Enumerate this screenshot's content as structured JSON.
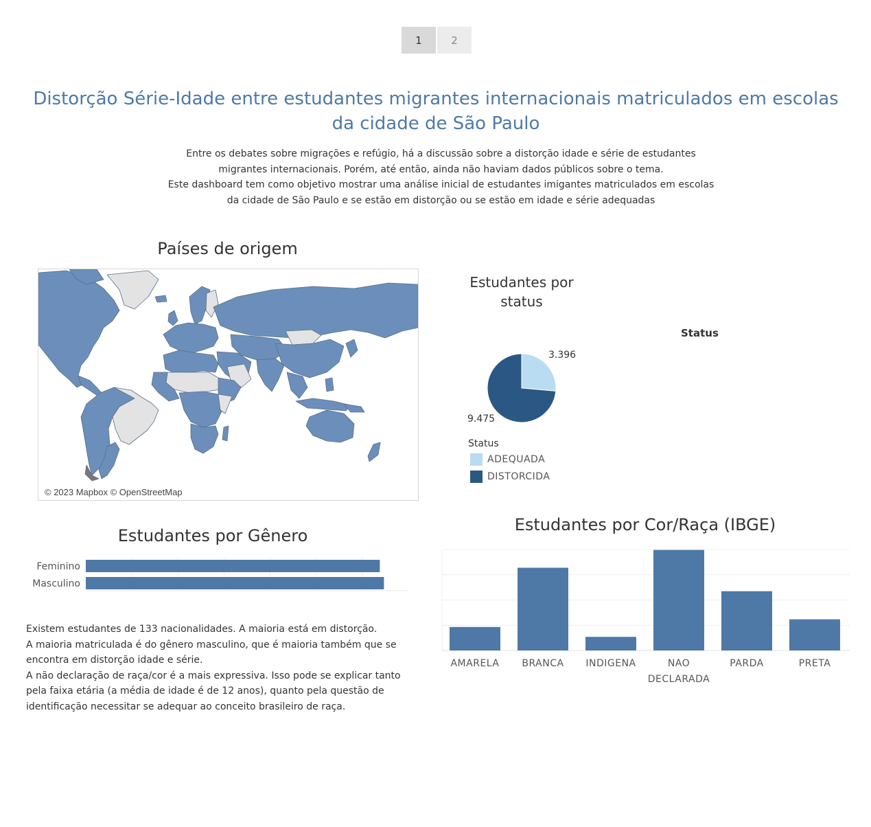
{
  "pager": {
    "pages": [
      "1",
      "2"
    ],
    "active": "1"
  },
  "title": "Distorção Série-Idade entre estudantes migrantes internacionais matriculados em escolas da cidade de São Paulo",
  "intro": [
    "Entre os debates sobre migrações e refúgio, há a discussão sobre a distorção idade e série de estudantes",
    "migrantes internacionais. Porém, até então, ainda não haviam dados públicos sobre o tema.",
    "Este dashboard tem como objetivo mostrar uma análise inicial de estudantes imigantes matriculados em escolas",
    "da cidade de São Paulo e se estão em distorção ou se estão em idade e série adequadas"
  ],
  "map": {
    "title": "Países de origem",
    "credit": "© 2023 Mapbox © OpenStreetMap",
    "fill_color": "#6b8fba",
    "empty_color": "#e3e3e3"
  },
  "status_header": "Status",
  "colors": {
    "adequada": "#b9dcf2",
    "distorcida": "#2b5784",
    "bar": "#4e79a7"
  },
  "chart_data": [
    {
      "type": "pie",
      "title": "Estudantes por status",
      "legend_title": "Status",
      "labels": [
        "ADEQUADA",
        "DISTORCIDA"
      ],
      "values": [
        3396,
        9475
      ],
      "value_labels": [
        "3.396",
        "9.475"
      ]
    },
    {
      "type": "bar",
      "orientation": "horizontal",
      "title": "Estudantes por Gênero",
      "categories": [
        "Feminino",
        "Masculino"
      ],
      "values": [
        6380,
        6470
      ],
      "xlim": [
        0,
        7000
      ]
    },
    {
      "type": "bar",
      "title": "Estudantes por Cor/Raça (IBGE)",
      "categories": [
        "AMARELA",
        "BRANCA",
        "INDIGENA",
        "NAO DECLARADA",
        "PARDA",
        "PRETA"
      ],
      "values": [
        1070,
        3770,
        620,
        4580,
        2700,
        1420
      ],
      "ylim": [
        0,
        4600
      ]
    }
  ],
  "notes": [
    "Existem estudantes de 133 nacionalidades. A maioria está em distorção.",
    "A maioria matriculada é do gênero masculino, que é maioria também que se encontra em distorção idade e série.",
    "A não declaração de raça/cor é a mais expressiva. Isso pode se explicar tanto pela faixa etária (a média de idade é de 12 anos), quanto pela questão de identificação necessitar se adequar ao conceito brasileiro de raça."
  ]
}
